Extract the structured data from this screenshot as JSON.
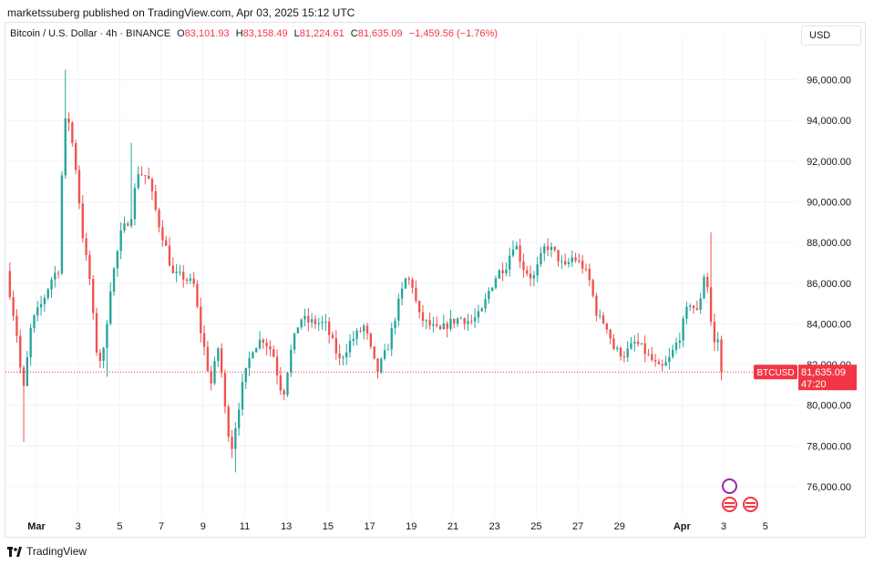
{
  "header": {
    "caption": "marketssuberg published on TradingView.com, Apr 03, 2025 15:12 UTC"
  },
  "legend": {
    "symbol": "Bitcoin / U.S. Dollar · 4h · BINANCE",
    "open_label": "O",
    "open_value": "83,101.93",
    "high_label": "H",
    "high_value": "83,158.49",
    "low_label": "L",
    "low_value": "81,224.61",
    "close_label": "C",
    "close_value": "81,635.09",
    "change": "−1,459.56 (−1.76%)"
  },
  "toolbar": {
    "currency_label": "USD"
  },
  "footer": {
    "brand": "TradingView"
  },
  "icons": {
    "events": [
      "magic-event-icon",
      "us-flag-icon",
      "us-flag-icon"
    ]
  },
  "colors": {
    "up": "#26a69a",
    "down": "#ef5350",
    "grid": "#f0f3fa",
    "last_price": "#f23645"
  },
  "chart_data": {
    "type": "candlestick",
    "interval": "4h",
    "grid": true,
    "ylim": [
      75000,
      97500
    ],
    "y_ticks": [
      "96,000.00",
      "94,000.00",
      "92,000.00",
      "90,000.00",
      "88,000.00",
      "86,000.00",
      "84,000.00",
      "82,000.00",
      "80,000.00",
      "78,000.00",
      "76,000.00"
    ],
    "y_tick_values": [
      96000,
      94000,
      92000,
      90000,
      88000,
      86000,
      84000,
      82000,
      80000,
      78000,
      76000
    ],
    "x_ticks": [
      "Mar",
      "3",
      "5",
      "7",
      "9",
      "11",
      "13",
      "15",
      "17",
      "19",
      "21",
      "23",
      "25",
      "27",
      "29",
      "Apr",
      "3",
      "5"
    ],
    "x_tick_days": [
      1,
      3,
      5,
      7,
      9,
      11,
      13,
      15,
      17,
      19,
      21,
      23,
      25,
      27,
      29,
      32,
      34,
      36
    ],
    "last_price": {
      "symbol": "BTCUSD",
      "value": 81635.09,
      "label": "81,635.09",
      "countdown": "47:20"
    },
    "close_path_anchors": [
      [
        0,
        86600
      ],
      [
        0.5,
        83500
      ],
      [
        0.8,
        80500
      ],
      [
        1.2,
        84000
      ],
      [
        1.7,
        85000
      ],
      [
        2.2,
        86300
      ],
      [
        2.5,
        86700
      ],
      [
        2.75,
        93600
      ],
      [
        2.95,
        94300
      ],
      [
        3.3,
        92000
      ],
      [
        3.7,
        88000
      ],
      [
        4.0,
        86200
      ],
      [
        4.3,
        82800
      ],
      [
        4.6,
        82000
      ],
      [
        5.0,
        85800
      ],
      [
        5.5,
        88400
      ],
      [
        6.0,
        89400
      ],
      [
        6.3,
        91500
      ],
      [
        6.8,
        91200
      ],
      [
        7.3,
        89000
      ],
      [
        7.6,
        88000
      ],
      [
        8.0,
        86400
      ],
      [
        8.5,
        86300
      ],
      [
        9.0,
        85900
      ],
      [
        9.3,
        83800
      ],
      [
        9.6,
        82300
      ],
      [
        9.8,
        80900
      ],
      [
        10.2,
        83000
      ],
      [
        10.5,
        79800
      ],
      [
        10.8,
        77800
      ],
      [
        11.3,
        80800
      ],
      [
        11.8,
        82800
      ],
      [
        12.3,
        83300
      ],
      [
        12.8,
        82600
      ],
      [
        13.1,
        81100
      ],
      [
        13.3,
        80500
      ],
      [
        13.6,
        82400
      ],
      [
        14.1,
        84300
      ],
      [
        14.5,
        84100
      ],
      [
        15.3,
        84000
      ],
      [
        16.0,
        82200
      ],
      [
        16.5,
        83100
      ],
      [
        17.2,
        83900
      ],
      [
        17.5,
        82700
      ],
      [
        17.8,
        81600
      ],
      [
        18.3,
        82800
      ],
      [
        18.8,
        84900
      ],
      [
        19.2,
        86300
      ],
      [
        19.5,
        85900
      ],
      [
        19.8,
        84400
      ],
      [
        20.2,
        84000
      ],
      [
        20.8,
        83600
      ],
      [
        21.2,
        84000
      ],
      [
        21.8,
        84300
      ],
      [
        22.3,
        84100
      ],
      [
        22.8,
        84500
      ],
      [
        23.2,
        85700
      ],
      [
        23.6,
        86500
      ],
      [
        24.0,
        86900
      ],
      [
        24.4,
        88100
      ],
      [
        24.8,
        86800
      ],
      [
        25.3,
        86200
      ],
      [
        25.9,
        87900
      ],
      [
        26.4,
        87400
      ],
      [
        26.8,
        86700
      ],
      [
        27.2,
        87300
      ],
      [
        27.7,
        86800
      ],
      [
        28.0,
        86100
      ],
      [
        28.4,
        84300
      ],
      [
        28.8,
        84000
      ],
      [
        29.2,
        82700
      ],
      [
        29.7,
        82500
      ],
      [
        30.2,
        83100
      ],
      [
        30.6,
        82700
      ],
      [
        31.0,
        82200
      ],
      [
        31.4,
        81700
      ],
      [
        31.8,
        82200
      ],
      [
        32.3,
        83300
      ],
      [
        32.8,
        85100
      ],
      [
        33.2,
        84500
      ],
      [
        33.5,
        86400
      ],
      [
        33.75,
        85600
      ],
      [
        33.9,
        82900
      ],
      [
        34.2,
        83300
      ],
      [
        34.4,
        81635
      ]
    ]
  }
}
